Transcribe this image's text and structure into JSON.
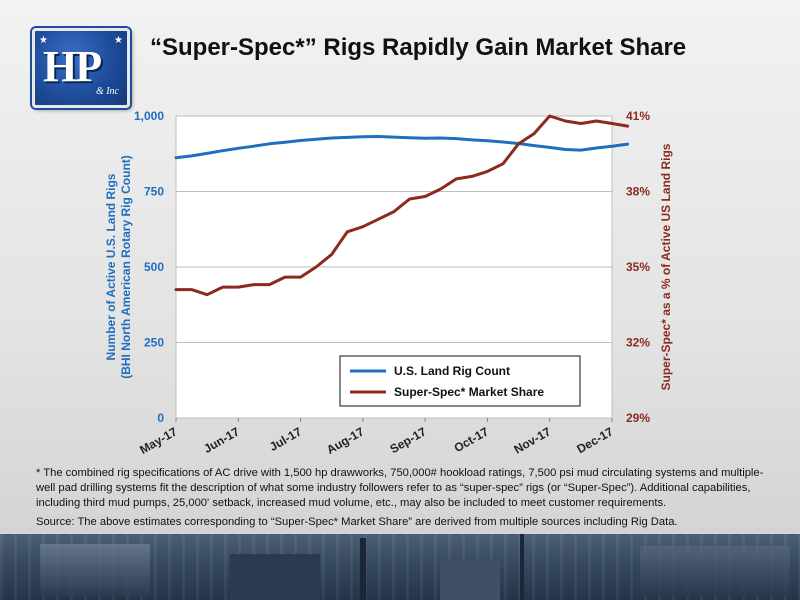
{
  "page": {
    "title": "“Super-Spec*” Rigs Rapidly Gain Market Share",
    "footnote": "* The combined rig specifications of AC drive with 1,500 hp drawworks, 750,000# hookload ratings, 7,500 psi mud circulating systems and multiple-well pad drilling systems fit the description of what some industry followers refer to as “super-spec” rigs (or “Super-Spec”). Additional capabilities, including third mud pumps, 25,000' setback, increased mud volume, etc., may also be included to meet customer requirements.",
    "source": "Source: The above estimates corresponding to “Super-Spec* Market Share” are derived from multiple sources including Rig Data.",
    "logo_text": "H&P Inc"
  },
  "chart_data": {
    "type": "line",
    "title": "“Super-Spec*” Rigs Rapidly Gain Market Share",
    "categories": [
      "May-17",
      "Jun-17",
      "Jul-17",
      "Aug-17",
      "Sep-17",
      "Oct-17",
      "Nov-17",
      "Dec-17"
    ],
    "xlabel": "",
    "ylabel_left": "Number of Active U.S. Land Rigs (BHI North American Rotary Rig Count)",
    "ylabel_right": "Super-Spec* as a % of Active US Land Rigs",
    "y_left": {
      "range": [
        0,
        1000
      ],
      "ticks": [
        "0",
        "250",
        "500",
        "750",
        "1,000"
      ],
      "tick_values": [
        0,
        250,
        500,
        750,
        1000
      ]
    },
    "y_right": {
      "range": [
        29,
        41
      ],
      "ticks": [
        "29%",
        "32%",
        "35%",
        "38%",
        "41%"
      ],
      "tick_values": [
        29,
        32,
        35,
        38,
        41
      ]
    },
    "grid": true,
    "legend_position": "bottom-right",
    "series": [
      {
        "name": "U.S. Land Rig Count",
        "axis": "left",
        "color": "#1f6fbf",
        "x": [
          0,
          0.25,
          0.5,
          0.75,
          1,
          1.25,
          1.5,
          1.75,
          2,
          2.25,
          2.5,
          2.75,
          3,
          3.25,
          3.5,
          3.75,
          4,
          4.25,
          4.5,
          4.75,
          5,
          5.25,
          5.5,
          5.75,
          6,
          6.25,
          6.5,
          6.75,
          7,
          7.25
        ],
        "y": [
          862,
          868,
          876,
          885,
          893,
          900,
          908,
          913,
          919,
          923,
          927,
          929,
          931,
          932,
          930,
          928,
          926,
          927,
          925,
          921,
          918,
          914,
          909,
          902,
          896,
          889,
          887,
          894,
          900,
          907
        ]
      },
      {
        "name": "Super-Spec* Market Share",
        "axis": "right",
        "color": "#8b2a1e",
        "x": [
          0,
          0.25,
          0.5,
          0.75,
          1,
          1.25,
          1.5,
          1.75,
          2,
          2.25,
          2.5,
          2.75,
          3,
          3.25,
          3.5,
          3.75,
          4,
          4.25,
          4.5,
          4.75,
          5,
          5.25,
          5.5,
          5.75,
          6,
          6.25,
          6.5,
          6.75,
          7,
          7.25
        ],
        "y": [
          34.1,
          34.1,
          33.9,
          34.2,
          34.2,
          34.3,
          34.3,
          34.6,
          34.6,
          35.0,
          35.5,
          36.4,
          36.6,
          36.9,
          37.2,
          37.7,
          37.8,
          38.1,
          38.5,
          38.6,
          38.8,
          39.1,
          39.9,
          40.3,
          41.0,
          40.8,
          40.7,
          40.8,
          40.7,
          40.6
        ]
      }
    ]
  }
}
